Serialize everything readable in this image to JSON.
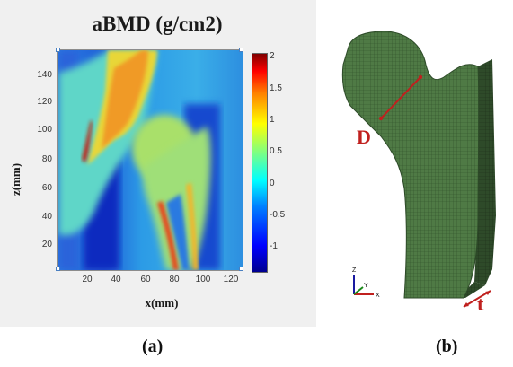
{
  "panel_a": {
    "title": "aBMD (g/cm2)",
    "xlabel": "x(mm)",
    "ylabel": "z(mm)",
    "x_ticks": [
      "20",
      "40",
      "60",
      "80",
      "100",
      "120"
    ],
    "y_ticks": [
      "140",
      "120",
      "100",
      "80",
      "60",
      "40",
      "20"
    ],
    "colorbar_ticks": [
      "2",
      "1.5",
      "1",
      "0.5",
      "0",
      "-0.5",
      "-1"
    ],
    "colormap": "jet",
    "caption": "(a)"
  },
  "panel_b": {
    "label_D": "D",
    "label_t": "t",
    "axis_z": "Z",
    "axis_y": "Y",
    "axis_x": "X",
    "mesh_color": "#4f7a45",
    "annotation_color": "#c0201e",
    "caption": "(b)"
  }
}
